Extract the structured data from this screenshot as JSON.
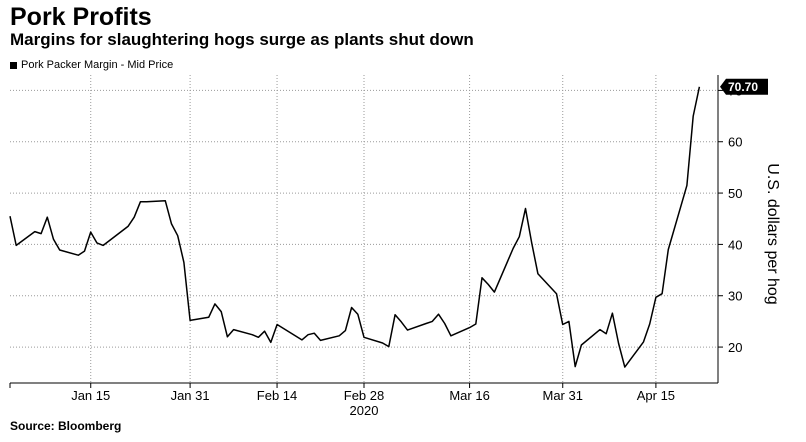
{
  "title": "Pork Profits",
  "subtitle": "Margins for slaughtering hogs surge as plants shut down",
  "source": "Source: Bloomberg",
  "chart_data": {
    "type": "line",
    "title": "Pork Profits",
    "subtitle": "Margins for slaughtering hogs surge as plants shut down",
    "ylabel": "U.S. dollars per hog",
    "ylim": [
      13,
      73
    ],
    "xlim": [
      "2020-01-02",
      "2020-04-25"
    ],
    "y_ticks": [
      20,
      30,
      40,
      50,
      60,
      70
    ],
    "x_ticks": [
      {
        "date": "2020-01-15",
        "label": "Jan 15"
      },
      {
        "date": "2020-01-31",
        "label": "Jan 31"
      },
      {
        "date": "2020-02-14",
        "label": "Feb 14"
      },
      {
        "date": "2020-02-28",
        "label": "Feb 28"
      },
      {
        "date": "2020-03-16",
        "label": "Mar 16"
      },
      {
        "date": "2020-03-31",
        "label": "Mar 31"
      },
      {
        "date": "2020-04-15",
        "label": "Apr 15"
      }
    ],
    "x_year_label": "2020",
    "grid": true,
    "legend": "top-left",
    "last_value_label": "70.70",
    "series": [
      {
        "name": "Pork Packer Margin - Mid Price",
        "color": "#000000",
        "points": [
          [
            "2020-01-02",
            45.5
          ],
          [
            "2020-01-03",
            39.8
          ],
          [
            "2020-01-06",
            42.5
          ],
          [
            "2020-01-07",
            42.1
          ],
          [
            "2020-01-08",
            45.3
          ],
          [
            "2020-01-09",
            41.0
          ],
          [
            "2020-01-10",
            38.9
          ],
          [
            "2020-01-13",
            37.9
          ],
          [
            "2020-01-14",
            38.7
          ],
          [
            "2020-01-15",
            42.4
          ],
          [
            "2020-01-16",
            40.3
          ],
          [
            "2020-01-17",
            39.8
          ],
          [
            "2020-01-21",
            43.5
          ],
          [
            "2020-01-22",
            45.3
          ],
          [
            "2020-01-23",
            48.3
          ],
          [
            "2020-01-24",
            48.3
          ],
          [
            "2020-01-27",
            48.5
          ],
          [
            "2020-01-28",
            44.0
          ],
          [
            "2020-01-29",
            41.7
          ],
          [
            "2020-01-30",
            36.5
          ],
          [
            "2020-01-31",
            25.2
          ],
          [
            "2020-02-03",
            25.8
          ],
          [
            "2020-02-04",
            28.4
          ],
          [
            "2020-02-05",
            26.9
          ],
          [
            "2020-02-06",
            22.0
          ],
          [
            "2020-02-07",
            23.4
          ],
          [
            "2020-02-10",
            22.4
          ],
          [
            "2020-02-11",
            21.9
          ],
          [
            "2020-02-12",
            23.1
          ],
          [
            "2020-02-13",
            20.9
          ],
          [
            "2020-02-14",
            24.4
          ],
          [
            "2020-02-18",
            21.4
          ],
          [
            "2020-02-19",
            22.4
          ],
          [
            "2020-02-20",
            22.7
          ],
          [
            "2020-02-21",
            21.3
          ],
          [
            "2020-02-24",
            22.2
          ],
          [
            "2020-02-25",
            23.2
          ],
          [
            "2020-02-26",
            27.7
          ],
          [
            "2020-02-27",
            26.4
          ],
          [
            "2020-02-28",
            21.9
          ],
          [
            "2020-03-02",
            20.8
          ],
          [
            "2020-03-03",
            20.1
          ],
          [
            "2020-03-04",
            26.3
          ],
          [
            "2020-03-05",
            24.9
          ],
          [
            "2020-03-06",
            23.3
          ],
          [
            "2020-03-09",
            24.6
          ],
          [
            "2020-03-10",
            25.0
          ],
          [
            "2020-03-11",
            26.4
          ],
          [
            "2020-03-12",
            24.6
          ],
          [
            "2020-03-13",
            22.2
          ],
          [
            "2020-03-16",
            23.8
          ],
          [
            "2020-03-17",
            24.5
          ],
          [
            "2020-03-18",
            33.5
          ],
          [
            "2020-03-19",
            32.2
          ],
          [
            "2020-03-20",
            30.7
          ],
          [
            "2020-03-23",
            39.2
          ],
          [
            "2020-03-24",
            41.5
          ],
          [
            "2020-03-25",
            47.0
          ],
          [
            "2020-03-26",
            40.3
          ],
          [
            "2020-03-27",
            34.3
          ],
          [
            "2020-03-30",
            30.4
          ],
          [
            "2020-03-31",
            24.4
          ],
          [
            "2020-04-01",
            25.0
          ],
          [
            "2020-04-02",
            16.2
          ],
          [
            "2020-04-03",
            20.4
          ],
          [
            "2020-04-06",
            23.4
          ],
          [
            "2020-04-07",
            22.6
          ],
          [
            "2020-04-08",
            26.6
          ],
          [
            "2020-04-09",
            20.7
          ],
          [
            "2020-04-10",
            16.1
          ],
          [
            "2020-04-13",
            21.0
          ],
          [
            "2020-04-14",
            24.5
          ],
          [
            "2020-04-15",
            29.7
          ],
          [
            "2020-04-16",
            30.4
          ],
          [
            "2020-04-17",
            39.0
          ],
          [
            "2020-04-20",
            51.5
          ],
          [
            "2020-04-21",
            65.0
          ],
          [
            "2020-04-22",
            70.7
          ]
        ]
      }
    ]
  }
}
